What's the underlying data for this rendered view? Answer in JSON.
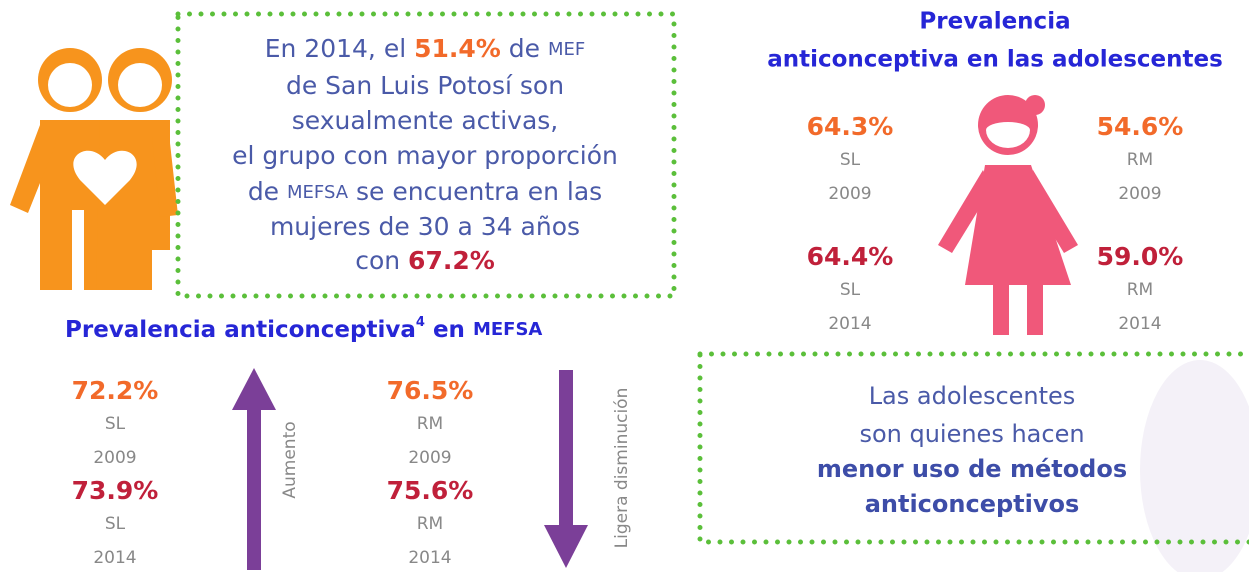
{
  "summary": [
    [
      "En 2014, el ",
      "51.4%",
      " de ",
      "MEF"
    ],
    [
      "de San Luis Potosí son"
    ],
    [
      "sexualmente activas,"
    ],
    [
      "el grupo con mayor proporción"
    ],
    [
      "de ",
      "MEFSA",
      " se encuentra en las"
    ],
    [
      "mujeres de 30 a 34 años"
    ],
    [
      "con ",
      "67.2%"
    ]
  ],
  "mefsa": {
    "title": "Prevalencia anticonceptiva",
    "sup": "4",
    "title_end": " en ",
    "title_acronym": "MEFSA",
    "sl": [
      {
        "value": "72.2%",
        "region": "SL",
        "year": "2009"
      },
      {
        "value": "73.9%",
        "region": "SL",
        "year": "2014"
      }
    ],
    "rm": [
      {
        "value": "76.5%",
        "region": "RM",
        "year": "2009"
      },
      {
        "value": "75.6%",
        "region": "RM",
        "year": "2014"
      }
    ],
    "up_label": "Aumento",
    "down_label": "Ligera disminución"
  },
  "adolescents": {
    "title": [
      "Prevalencia",
      "anticonceptiva en las adolescentes"
    ],
    "sl": [
      {
        "value": "64.3%",
        "region": "SL",
        "year": "2009"
      },
      {
        "value": "64.4%",
        "region": "SL",
        "year": "2014"
      }
    ],
    "rm": [
      {
        "value": "54.6%",
        "region": "RM",
        "year": "2009"
      },
      {
        "value": "59.0%",
        "region": "RM",
        "year": "2014"
      }
    ]
  },
  "note": [
    "Las adolescentes",
    "son quienes hacen",
    "menor uso de métodos",
    "anticonceptivos"
  ]
}
